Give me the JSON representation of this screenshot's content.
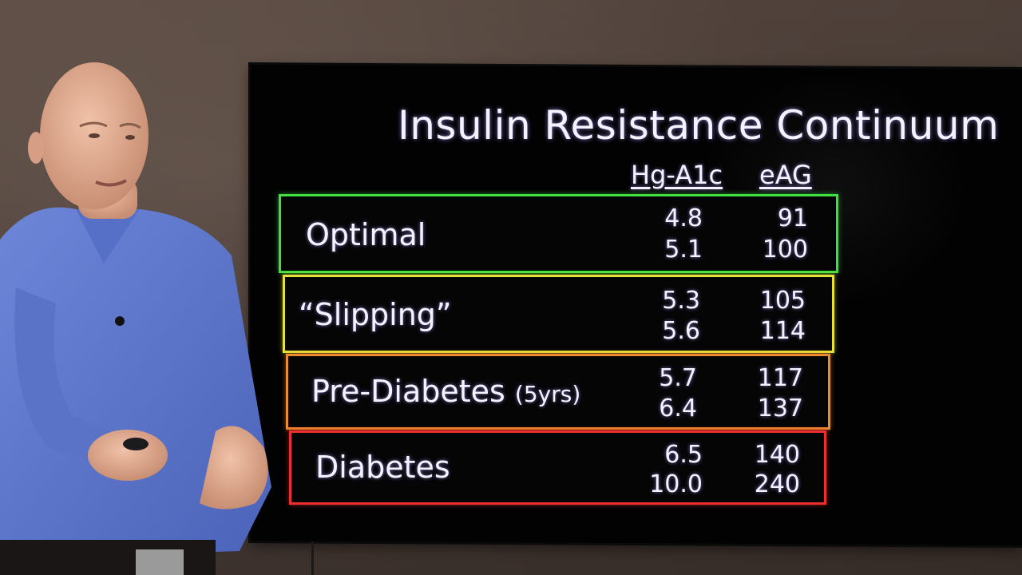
{
  "slide": {
    "title": "Insulin Resistance Continuum",
    "columns": {
      "a1c": "Hg-A1c",
      "eag": "eAG"
    },
    "rows": [
      {
        "label": "Optimal",
        "note": "",
        "a1c_low": "4.8",
        "a1c_high": "5.1",
        "eag_low": "91",
        "eag_high": "100",
        "color": "#3fe040"
      },
      {
        "label": "“Slipping”",
        "note": "",
        "a1c_low": "5.3",
        "a1c_high": "5.6",
        "eag_low": "105",
        "eag_high": "114",
        "color": "#e7e23a"
      },
      {
        "label": "Pre-Diabetes",
        "note": "(5yrs)",
        "a1c_low": "5.7",
        "a1c_high": "6.4",
        "eag_low": "117",
        "eag_high": "137",
        "color": "#f08a2e"
      },
      {
        "label": "Diabetes",
        "note": "",
        "a1c_low": "6.5",
        "a1c_high": "10.0",
        "eag_low": "140",
        "eag_high": "240",
        "color": "#ee2e2e"
      }
    ]
  }
}
